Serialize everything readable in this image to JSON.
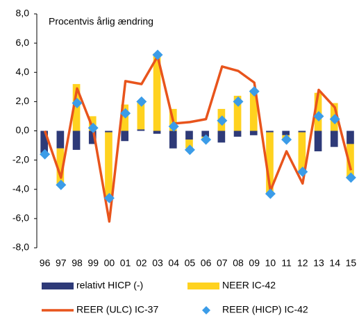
{
  "chart_data": {
    "type": "combo",
    "annotation": "Procentvis årlig ændring",
    "categories": [
      "96",
      "97",
      "98",
      "99",
      "00",
      "01",
      "02",
      "03",
      "04",
      "05",
      "06",
      "07",
      "08",
      "09",
      "10",
      "11",
      "12",
      "13",
      "14",
      "15"
    ],
    "ylim": [
      -8,
      8
    ],
    "yticks": [
      {
        "value": -8,
        "label": "-8,0"
      },
      {
        "value": -6,
        "label": "-6,0"
      },
      {
        "value": -4,
        "label": "-4,0"
      },
      {
        "value": -2,
        "label": "-2,0"
      },
      {
        "value": 0,
        "label": "0,0"
      },
      {
        "value": 2,
        "label": "2,0"
      },
      {
        "value": 4,
        "label": "4,0"
      },
      {
        "value": 6,
        "label": "6,0"
      },
      {
        "value": 8,
        "label": "8,0"
      }
    ],
    "series": [
      {
        "name": "relativt HICP (-)",
        "type": "bar",
        "color": "#2e3a78",
        "values": [
          -1.5,
          -1.2,
          -1.3,
          -0.9,
          -0.1,
          -0.7,
          0.1,
          -0.2,
          -1.2,
          -0.6,
          -0.4,
          -0.8,
          -0.4,
          -0.3,
          -0.1,
          -0.3,
          -0.1,
          -1.4,
          -1.1,
          -0.9
        ]
      },
      {
        "name": "NEER IC-42",
        "type": "bar",
        "color": "#ffd21f",
        "values": [
          -0.1,
          -2.5,
          3.2,
          1.0,
          -4.6,
          1.8,
          1.9,
          5.3,
          1.5,
          -0.6,
          -0.2,
          1.5,
          2.4,
          2.8,
          -4.2,
          -0.3,
          -2.7,
          2.6,
          1.9,
          -2.3
        ]
      },
      {
        "name": "REER (ULC) IC-37",
        "type": "line",
        "color": "#e8541c",
        "values": [
          0.0,
          -3.2,
          2.9,
          0.1,
          -6.2,
          3.4,
          3.2,
          5.1,
          0.5,
          0.6,
          0.8,
          4.4,
          4.1,
          3.3,
          -4.1,
          -1.4,
          -3.6,
          2.8,
          1.6,
          -2.7
        ]
      },
      {
        "name": "REER (HICP) IC-42",
        "type": "scatter",
        "color": "#3b9ce8",
        "values": [
          -1.6,
          -3.7,
          1.9,
          0.2,
          -4.6,
          1.2,
          2.0,
          5.2,
          0.3,
          -1.3,
          -0.6,
          0.7,
          2.0,
          2.7,
          -4.3,
          -0.6,
          -2.8,
          1.0,
          0.8,
          -3.2
        ]
      }
    ]
  }
}
